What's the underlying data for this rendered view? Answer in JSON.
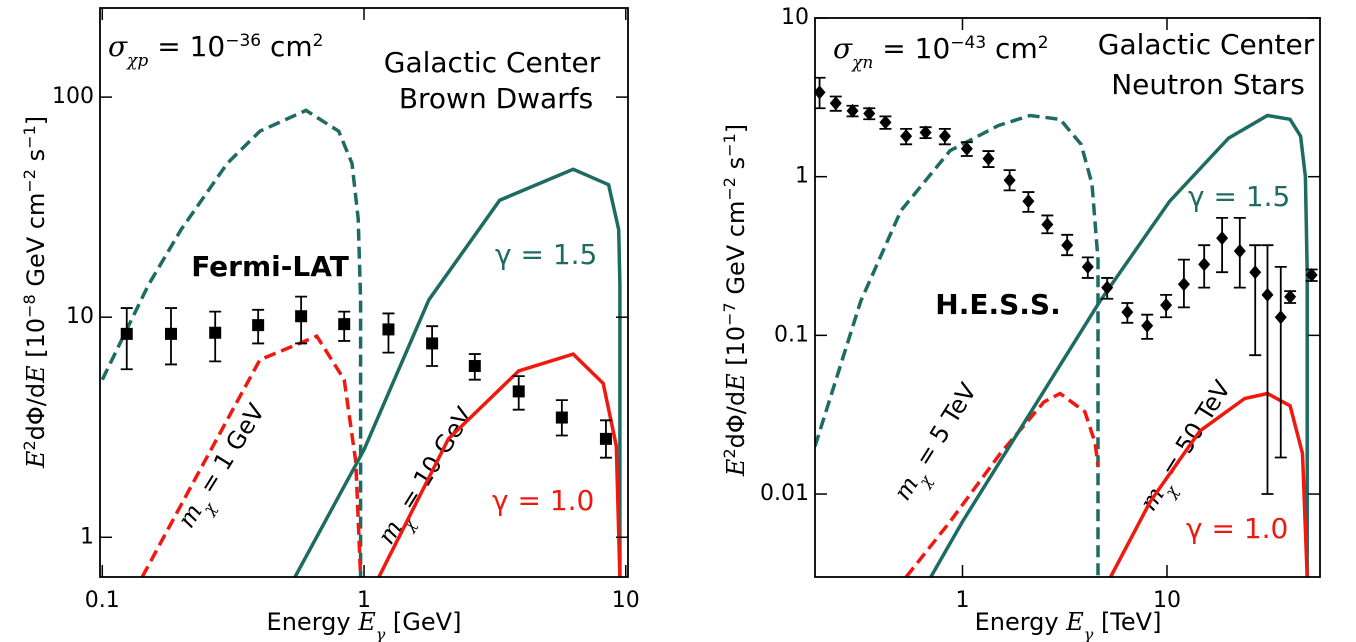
{
  "chart_data": [
    {
      "type": "line",
      "xlog": true,
      "ylog": true,
      "xlim": [
        0.098,
        10.2
      ],
      "ylim": [
        0.66,
        254
      ],
      "xticks": [
        0.1,
        1,
        10
      ],
      "yticks": [
        1,
        10,
        100
      ],
      "xlabel": [
        "Energy ",
        "E",
        "γ",
        " [GeV]"
      ],
      "ylabel": [
        "E",
        "2",
        "dΦ/d",
        "E",
        " [10",
        "−8",
        " GeV cm",
        "−2",
        " s",
        "−1",
        "]"
      ],
      "annotations": {
        "cross_section": [
          "σ",
          "χp",
          " = 10",
          "−36",
          " cm",
          "2"
        ],
        "source": [
          "Galactic Center",
          "Brown Dwarfs"
        ],
        "gamma_high": "γ = 1.5",
        "gamma_low": "γ = 1.0",
        "mass_low": [
          "m",
          "χ",
          " = 1 GeV"
        ],
        "mass_high": [
          "m",
          "χ",
          " = 10 GeV"
        ]
      },
      "series": [
        {
          "color": "#1d6b62",
          "linestyle": "dashed",
          "x": [
            0.1,
            0.15,
            0.2,
            0.3,
            0.4,
            0.6,
            0.8,
            0.9,
            0.95,
            0.97,
            0.97
          ],
          "values": [
            5.2,
            14,
            25,
            50,
            70,
            87,
            70,
            50,
            28,
            12,
            0.66
          ]
        },
        {
          "color": "#f0190f",
          "linestyle": "dashed",
          "x": [
            0.142,
            0.235,
            0.4,
            0.66,
            0.84,
            0.93,
            0.97
          ],
          "values": [
            0.66,
            2.0,
            6.4,
            8.2,
            5.2,
            2.2,
            0.66
          ]
        },
        {
          "color": "#1d6b62",
          "linestyle": "solid",
          "x": [
            0.545,
            1,
            1.77,
            3.3,
            6.3,
            8.6,
            9.4,
            9.5,
            9.5
          ],
          "values": [
            0.66,
            2.5,
            12,
            34,
            47,
            40,
            25,
            14,
            0.66
          ]
        },
        {
          "color": "#f0190f",
          "linestyle": "solid",
          "x": [
            1.14,
            2.1,
            3.9,
            6.3,
            8.2,
            9.2,
            9.5
          ],
          "values": [
            0.66,
            2.8,
            5.7,
            6.8,
            5.0,
            2.6,
            0.66
          ]
        },
        {
          "name": "Fermi-LAT",
          "color": "#000000",
          "linestyle": "none",
          "marker": "square",
          "x": [
            0.124,
            0.183,
            0.27,
            0.394,
            0.575,
            0.84,
            1.24,
            1.82,
            2.65,
            3.9,
            5.7,
            8.4
          ],
          "values": [
            8.4,
            8.4,
            8.5,
            9.2,
            10.1,
            9.3,
            8.8,
            7.6,
            6.0,
            4.6,
            3.5,
            2.8
          ],
          "lower": [
            5.8,
            6.1,
            6.3,
            7.6,
            7.6,
            7.8,
            6.9,
            6.0,
            5.2,
            3.8,
            2.9,
            2.3
          ],
          "upper": [
            11,
            11,
            10.6,
            10.8,
            12.4,
            10.6,
            10.4,
            9.1,
            6.8,
            5.4,
            4.2,
            3.4
          ]
        }
      ]
    },
    {
      "type": "line",
      "xlog": true,
      "ylog": true,
      "xlim": [
        0.19,
        56
      ],
      "ylim": [
        0.003,
        10
      ],
      "xticks": [
        1,
        10
      ],
      "yticks": [
        0.01,
        0.1,
        1,
        10
      ],
      "xlabel": [
        "Energy ",
        "E",
        "γ",
        " [TeV]"
      ],
      "ylabel": [
        "E",
        "2",
        "dΦ/d",
        "E",
        " [10",
        "−7",
        " GeV cm",
        "−2",
        " s",
        "−1",
        "]"
      ],
      "annotations": {
        "cross_section": [
          "σ",
          "χn",
          " = 10",
          "−43",
          " cm",
          "2"
        ],
        "source": [
          "Galactic Center",
          "Neutron Stars"
        ],
        "gamma_high": "γ = 1.5",
        "gamma_low": "γ = 1.0",
        "mass_low": [
          "m",
          "χ",
          " = 5 TeV"
        ],
        "mass_high": [
          "m",
          "χ",
          " = 50 TeV"
        ]
      },
      "series": [
        {
          "color": "#1d6b62",
          "linestyle": "dashed",
          "x": [
            0.19,
            0.318,
            0.5,
            0.87,
            1.5,
            2.14,
            3.0,
            3.8,
            4.3,
            4.6,
            4.6
          ],
          "values": [
            0.02,
            0.164,
            0.61,
            1.46,
            2.1,
            2.43,
            2.3,
            1.6,
            0.9,
            0.3,
            0.003
          ]
        },
        {
          "color": "#f0190f",
          "linestyle": "dashed",
          "x": [
            0.53,
            0.87,
            1.53,
            2.5,
            3.0,
            3.97,
            4.45,
            4.6
          ],
          "values": [
            0.003,
            0.0067,
            0.018,
            0.038,
            0.043,
            0.033,
            0.021,
            0.015
          ]
        },
        {
          "color": "#1d6b62",
          "linestyle": "solid",
          "x": [
            0.7,
            1,
            4.7,
            10.3,
            20,
            31,
            40,
            45,
            47.5,
            48.5,
            48.5
          ],
          "values": [
            0.003,
            0.0067,
            0.164,
            0.7,
            1.75,
            2.43,
            2.3,
            1.8,
            1.0,
            0.25,
            0.003
          ]
        },
        {
          "color": "#f0190f",
          "linestyle": "solid",
          "x": [
            5.3,
            8.3,
            14.5,
            24,
            31,
            40,
            46,
            48.5
          ],
          "values": [
            0.003,
            0.009,
            0.025,
            0.04,
            0.043,
            0.036,
            0.018,
            0.003
          ]
        },
        {
          "name": "H.E.S.S.",
          "color": "#000000",
          "linestyle": "none",
          "marker": "diamond",
          "x": [
            0.2,
            0.24,
            0.29,
            0.35,
            0.42,
            0.53,
            0.66,
            0.82,
            1.05,
            1.34,
            1.7,
            2.1,
            2.6,
            3.25,
            4.1,
            5.1,
            6.4,
            8.0,
            9.9,
            12.1,
            15.2,
            18.6,
            22.7,
            27,
            31,
            36,
            40,
            51
          ],
          "values": [
            3.4,
            2.9,
            2.6,
            2.5,
            2.2,
            1.8,
            1.9,
            1.8,
            1.5,
            1.3,
            0.95,
            0.7,
            0.5,
            0.37,
            0.27,
            0.2,
            0.14,
            0.115,
            0.155,
            0.21,
            0.28,
            0.41,
            0.34,
            0.25,
            0.18,
            0.13,
            0.175,
            0.24
          ],
          "lower": [
            2.7,
            2.6,
            2.4,
            2.3,
            2.0,
            1.6,
            1.75,
            1.6,
            1.35,
            1.15,
            0.82,
            0.6,
            0.44,
            0.32,
            0.23,
            0.17,
            0.12,
            0.095,
            0.13,
            0.15,
            0.2,
            0.25,
            0.2,
            0.075,
            0.01,
            0.017,
            0.16,
            0.22
          ],
          "upper": [
            4.2,
            3.2,
            2.8,
            2.7,
            2.4,
            2.0,
            2.05,
            2.0,
            1.65,
            1.45,
            1.1,
            0.8,
            0.57,
            0.43,
            0.31,
            0.23,
            0.16,
            0.135,
            0.18,
            0.3,
            0.37,
            0.55,
            0.55,
            0.37,
            0.37,
            0.27,
            0.19,
            0.26
          ]
        }
      ]
    }
  ]
}
